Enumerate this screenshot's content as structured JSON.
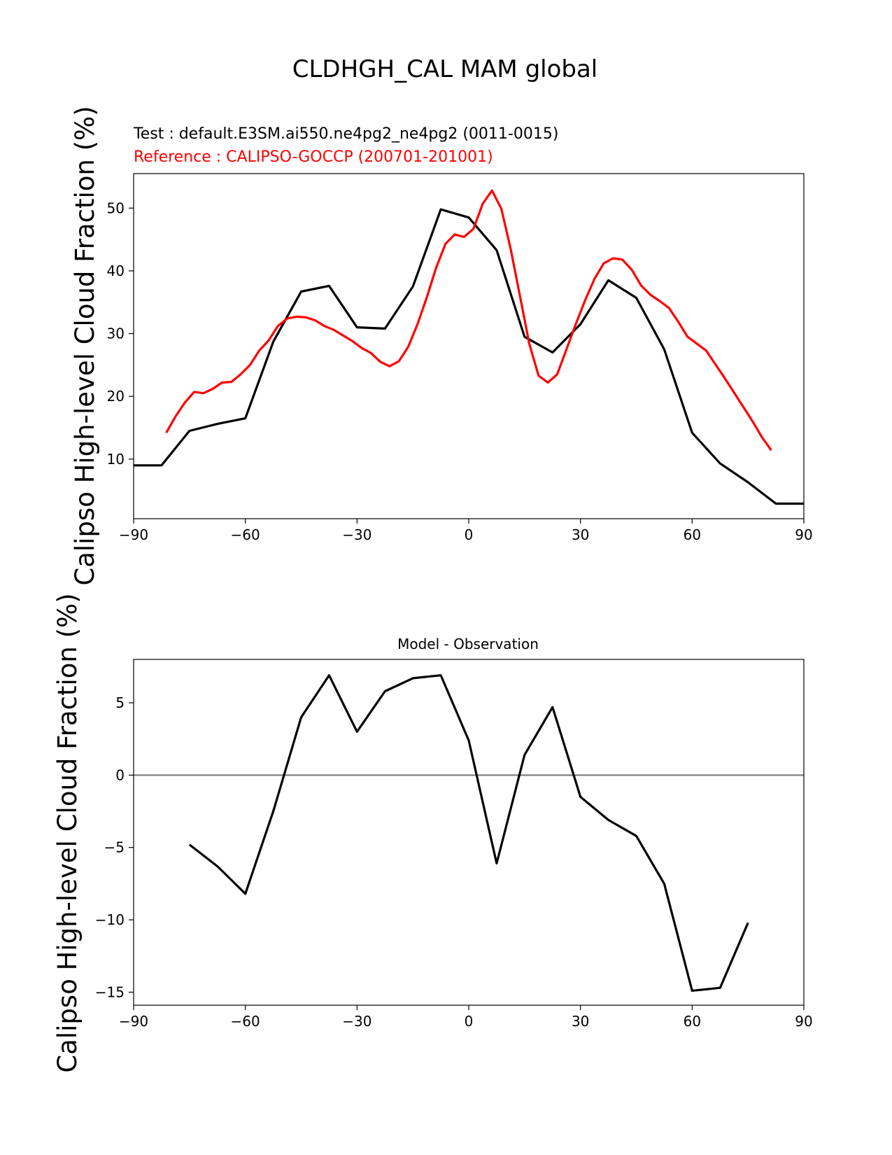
{
  "figure": {
    "title": "CLDHGH_CAL MAM global",
    "test_label": "Test : default.E3SM.ai550.ne4pg2_ne4pg2 (0011-0015)",
    "ref_label": "Reference : CALIPSO-GOCCP (200701-201001)",
    "diff_title": "Model - Observation",
    "ylabel": "Calipso High-level Cloud Fraction (%)"
  },
  "colors": {
    "test": "#000000",
    "reference": "#ff0000",
    "zero_line": "#808080"
  },
  "chart_data": [
    {
      "type": "line",
      "xlabel": "",
      "ylabel": "Calipso High-level Cloud Fraction (%)",
      "xlim": [
        -90,
        90
      ],
      "ylim": [
        0.5,
        55.5
      ],
      "xticks": [
        -90,
        -60,
        -30,
        0,
        30,
        60,
        90
      ],
      "yticks": [
        10,
        20,
        30,
        40,
        50
      ],
      "series": [
        {
          "name": "Test : default.E3SM.ai550.ne4pg2_ne4pg2 (0011-0015)",
          "color": "#000000",
          "x": [
            -90,
            -82.5,
            -75,
            -67.5,
            -60,
            -52.5,
            -45,
            -37.5,
            -30,
            -22.5,
            -15,
            -7.5,
            0,
            7.5,
            15,
            22.5,
            30,
            37.5,
            45,
            52.5,
            60,
            67.5,
            75,
            82.5,
            90
          ],
          "y": [
            9.0,
            9.0,
            14.5,
            15.6,
            16.5,
            28.7,
            36.7,
            37.6,
            31.0,
            30.8,
            37.5,
            49.8,
            48.5,
            43.3,
            29.5,
            27.0,
            31.5,
            38.5,
            35.7,
            27.5,
            14.2,
            9.3,
            6.3,
            2.9,
            2.9
          ]
        },
        {
          "name": "Reference : CALIPSO-GOCCP (200701-201001)",
          "color": "#ff0000",
          "x": [
            -81.25,
            -78.75,
            -76.25,
            -73.75,
            -71.25,
            -68.75,
            -66.25,
            -63.75,
            -61.25,
            -58.75,
            -56.25,
            -53.75,
            -51.25,
            -48.75,
            -46.25,
            -43.75,
            -41.25,
            -38.75,
            -36.25,
            -33.75,
            -31.25,
            -28.75,
            -26.25,
            -23.75,
            -21.25,
            -18.75,
            -16.25,
            -13.75,
            -11.25,
            -8.75,
            -6.25,
            -3.75,
            -1.25,
            1.25,
            3.75,
            6.25,
            8.75,
            11.25,
            13.75,
            16.25,
            18.75,
            21.25,
            23.75,
            26.25,
            28.75,
            31.25,
            33.75,
            36.25,
            38.75,
            41.25,
            43.75,
            46.25,
            48.75,
            51.25,
            53.75,
            56.25,
            58.75,
            61.25,
            63.75,
            66.25,
            68.75,
            71.25,
            73.75,
            76.25,
            78.75,
            81.25
          ],
          "y": [
            14.2,
            16.8,
            19.0,
            20.7,
            20.5,
            21.2,
            22.2,
            22.3,
            23.5,
            25.0,
            27.3,
            28.9,
            31.2,
            32.4,
            32.7,
            32.6,
            32.1,
            31.2,
            30.6,
            29.7,
            28.8,
            27.7,
            26.9,
            25.5,
            24.8,
            25.6,
            27.9,
            31.5,
            35.8,
            40.5,
            44.3,
            45.8,
            45.4,
            46.7,
            50.7,
            52.8,
            49.9,
            43.5,
            36.0,
            28.4,
            23.3,
            22.2,
            23.5,
            27.5,
            31.5,
            35.3,
            38.7,
            41.2,
            42.0,
            41.8,
            40.2,
            37.7,
            36.2,
            35.2,
            34.1,
            31.9,
            29.5,
            28.4,
            27.3,
            25.1,
            22.9,
            20.6,
            18.3,
            16.0,
            13.5,
            11.4
          ]
        }
      ]
    },
    {
      "type": "line",
      "title": "Model - Observation",
      "xlabel": "",
      "ylabel": "Calipso High-level Cloud Fraction (%)",
      "xlim": [
        -90,
        90
      ],
      "ylim": [
        -15.9,
        8.0
      ],
      "xticks": [
        -90,
        -60,
        -30,
        0,
        30,
        60,
        90
      ],
      "yticks": [
        -15,
        -10,
        -5,
        0,
        5
      ],
      "zero_line": true,
      "series": [
        {
          "color": "#000000",
          "x": [
            -75,
            -67.5,
            -60,
            -52.5,
            -45,
            -37.5,
            -30,
            -22.5,
            -15,
            -7.5,
            0,
            7.5,
            15,
            22.5,
            30,
            37.5,
            45,
            52.5,
            60,
            67.5,
            75
          ],
          "y": [
            -4.8,
            -6.3,
            -8.2,
            -2.5,
            4.0,
            6.9,
            3.0,
            5.8,
            6.7,
            6.9,
            2.4,
            -6.1,
            1.4,
            4.7,
            -1.5,
            -3.1,
            -4.2,
            -7.5,
            -14.9,
            -14.7,
            -10.2
          ]
        }
      ]
    }
  ]
}
